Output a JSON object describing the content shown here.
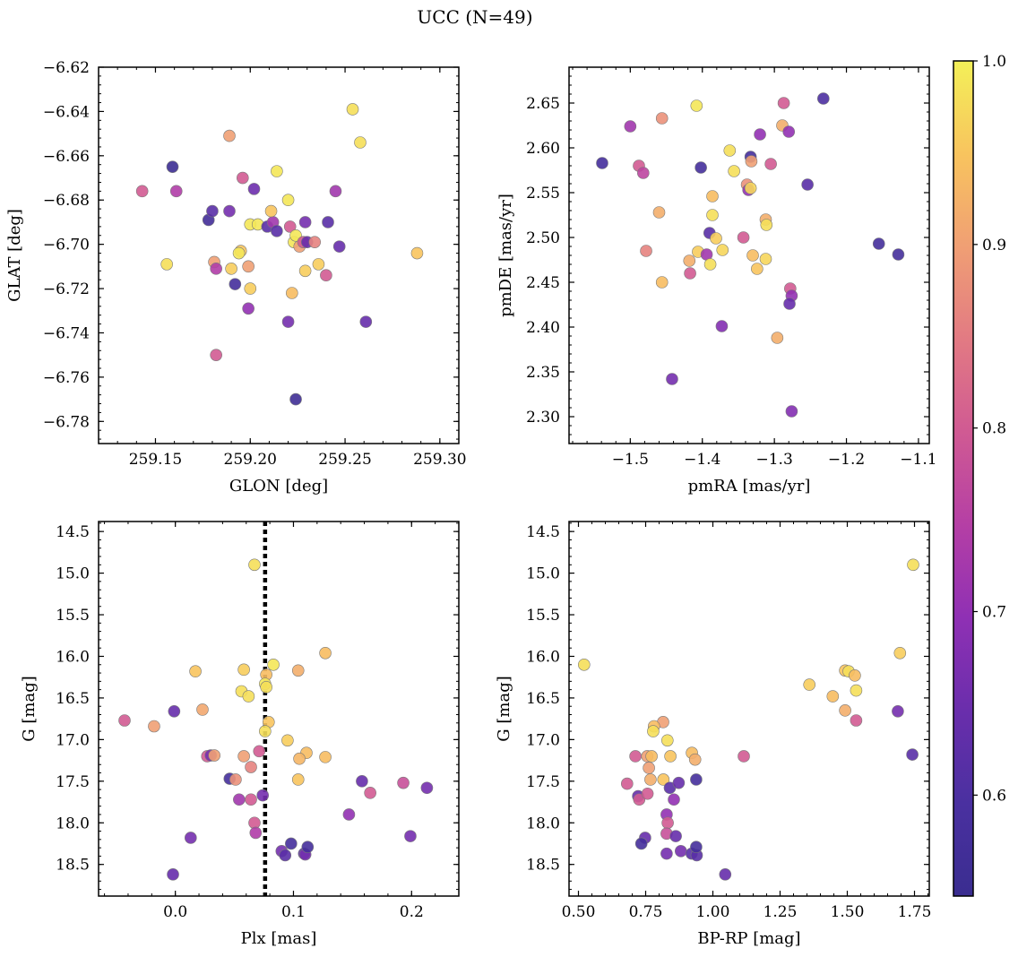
{
  "figure": {
    "title": "UCC (N=49)"
  },
  "colorbar": {
    "range": [
      0.545,
      1.0
    ],
    "ticks": [
      0.6,
      0.7,
      0.8,
      0.9,
      1.0
    ],
    "tick_labels": [
      "0.6",
      "0.7",
      "0.8",
      "0.9",
      "1.0"
    ],
    "colormap": "plasma"
  },
  "colormap_stops": [
    "#3a2d90",
    "#4a30a0",
    "#6a2eac",
    "#8f30b4",
    "#b53fa5",
    "#d05a93",
    "#e27a83",
    "#f09f74",
    "#f8c45e",
    "#f3f058"
  ],
  "chart_data": [
    {
      "type": "scatter",
      "title": "",
      "xlabel": "GLON [deg]",
      "ylabel": "GLAT [deg]",
      "xlim": [
        259.12,
        259.31
      ],
      "ylim": [
        -6.79,
        -6.62
      ],
      "xticks": [
        259.15,
        259.2,
        259.25,
        259.3
      ],
      "xtick_labels": [
        "259.15",
        "259.20",
        "259.25",
        "259.30"
      ],
      "yticks": [
        -6.78,
        -6.76,
        -6.74,
        -6.72,
        -6.7,
        -6.68,
        -6.66,
        -6.64,
        -6.62
      ],
      "ytick_labels": [
        "−6.78",
        "−6.76",
        "−6.74",
        "−6.72",
        "−6.70",
        "−6.68",
        "−6.66",
        "−6.64",
        "−6.62"
      ],
      "points": [
        [
          259.159,
          -6.665,
          0.55
        ],
        [
          259.143,
          -6.676,
          0.8
        ],
        [
          259.161,
          -6.676,
          0.74
        ],
        [
          259.178,
          -6.689,
          0.57
        ],
        [
          259.18,
          -6.685,
          0.62
        ],
        [
          259.189,
          -6.685,
          0.66
        ],
        [
          259.189,
          -6.651,
          0.9
        ],
        [
          259.196,
          -6.67,
          0.8
        ],
        [
          259.202,
          -6.675,
          0.65
        ],
        [
          259.214,
          -6.667,
          0.99
        ],
        [
          259.2,
          -6.691,
          0.99
        ],
        [
          259.204,
          -6.691,
          0.99
        ],
        [
          259.195,
          -6.703,
          0.95
        ],
        [
          259.194,
          -6.704,
          0.99
        ],
        [
          259.181,
          -6.708,
          0.9
        ],
        [
          259.182,
          -6.711,
          0.74
        ],
        [
          259.19,
          -6.711,
          0.96
        ],
        [
          259.199,
          -6.71,
          0.9
        ],
        [
          259.2,
          -6.72,
          0.96
        ],
        [
          259.192,
          -6.718,
          0.58
        ],
        [
          259.156,
          -6.709,
          0.98
        ],
        [
          259.199,
          -6.729,
          0.7
        ],
        [
          259.182,
          -6.75,
          0.8
        ],
        [
          259.209,
          -6.692,
          0.62
        ],
        [
          259.212,
          -6.69,
          0.72
        ],
        [
          259.214,
          -6.694,
          0.62
        ],
        [
          259.211,
          -6.685,
          0.95
        ],
        [
          259.22,
          -6.68,
          0.99
        ],
        [
          259.221,
          -6.692,
          0.8
        ],
        [
          259.223,
          -6.699,
          0.99
        ],
        [
          259.224,
          -6.696,
          0.99
        ],
        [
          259.226,
          -6.701,
          0.9
        ],
        [
          259.228,
          -6.699,
          0.8
        ],
        [
          259.229,
          -6.69,
          0.66
        ],
        [
          259.229,
          -6.712,
          0.96
        ],
        [
          259.23,
          -6.699,
          0.64
        ],
        [
          259.234,
          -6.699,
          0.86
        ],
        [
          259.236,
          -6.709,
          0.96
        ],
        [
          259.222,
          -6.722,
          0.94
        ],
        [
          259.22,
          -6.735,
          0.66
        ],
        [
          259.224,
          -6.77,
          0.56
        ],
        [
          259.241,
          -6.69,
          0.62
        ],
        [
          259.24,
          -6.714,
          0.8
        ],
        [
          259.245,
          -6.676,
          0.72
        ],
        [
          259.247,
          -6.701,
          0.64
        ],
        [
          259.254,
          -6.639,
          0.98
        ],
        [
          259.258,
          -6.654,
          0.98
        ],
        [
          259.261,
          -6.735,
          0.64
        ],
        [
          259.288,
          -6.704,
          0.95
        ]
      ]
    },
    {
      "type": "scatter",
      "title": "",
      "xlabel": "pmRA [mas/yr]",
      "ylabel": "pmDE [mas/yr]",
      "xlim": [
        -1.585,
        -1.085
      ],
      "ylim": [
        2.27,
        2.69
      ],
      "xticks": [
        -1.5,
        -1.4,
        -1.3,
        -1.2,
        -1.1
      ],
      "xtick_labels": [
        "−1.5",
        "−1.4",
        "−1.3",
        "−1.2",
        "−1.1"
      ],
      "yticks": [
        2.3,
        2.35,
        2.4,
        2.45,
        2.5,
        2.55,
        2.6,
        2.65
      ],
      "ytick_labels": [
        "2.30",
        "2.35",
        "2.40",
        "2.45",
        "2.50",
        "2.55",
        "2.60",
        "2.65"
      ],
      "points": [
        [
          -1.539,
          2.583,
          0.58
        ],
        [
          -1.5,
          2.624,
          0.72
        ],
        [
          -1.456,
          2.633,
          0.88
        ],
        [
          -1.488,
          2.58,
          0.8
        ],
        [
          -1.482,
          2.572,
          0.76
        ],
        [
          -1.408,
          2.647,
          0.99
        ],
        [
          -1.402,
          2.578,
          0.58
        ],
        [
          -1.362,
          2.597,
          0.98
        ],
        [
          -1.356,
          2.574,
          0.98
        ],
        [
          -1.32,
          2.615,
          0.7
        ],
        [
          -1.287,
          2.65,
          0.8
        ],
        [
          -1.289,
          2.625,
          0.92
        ],
        [
          -1.28,
          2.618,
          0.7
        ],
        [
          -1.232,
          2.655,
          0.6
        ],
        [
          -1.305,
          2.582,
          0.8
        ],
        [
          -1.254,
          2.559,
          0.62
        ],
        [
          -1.333,
          2.59,
          0.58
        ],
        [
          -1.332,
          2.585,
          0.9
        ],
        [
          -1.338,
          2.559,
          0.88
        ],
        [
          -1.336,
          2.553,
          0.7
        ],
        [
          -1.333,
          2.555,
          0.97
        ],
        [
          -1.386,
          2.546,
          0.94
        ],
        [
          -1.46,
          2.528,
          0.92
        ],
        [
          -1.386,
          2.525,
          0.98
        ],
        [
          -1.312,
          2.52,
          0.92
        ],
        [
          -1.311,
          2.514,
          0.98
        ],
        [
          -1.39,
          2.505,
          0.62
        ],
        [
          -1.381,
          2.499,
          0.96
        ],
        [
          -1.343,
          2.5,
          0.8
        ],
        [
          -1.478,
          2.485,
          0.86
        ],
        [
          -1.406,
          2.484,
          0.96
        ],
        [
          -1.394,
          2.481,
          0.72
        ],
        [
          -1.372,
          2.486,
          0.97
        ],
        [
          -1.33,
          2.48,
          0.94
        ],
        [
          -1.312,
          2.476,
          0.97
        ],
        [
          -1.418,
          2.474,
          0.92
        ],
        [
          -1.389,
          2.47,
          0.98
        ],
        [
          -1.324,
          2.465,
          0.95
        ],
        [
          -1.417,
          2.46,
          0.8
        ],
        [
          -1.456,
          2.45,
          0.94
        ],
        [
          -1.278,
          2.443,
          0.8
        ],
        [
          -1.276,
          2.435,
          0.7
        ],
        [
          -1.279,
          2.426,
          0.64
        ],
        [
          -1.373,
          2.401,
          0.68
        ],
        [
          -1.296,
          2.388,
          0.92
        ],
        [
          -1.442,
          2.342,
          0.66
        ],
        [
          -1.276,
          2.306,
          0.68
        ],
        [
          -1.155,
          2.493,
          0.58
        ],
        [
          -1.128,
          2.481,
          0.58
        ]
      ]
    },
    {
      "type": "scatter",
      "title": "",
      "xlabel": "Plx [mas]",
      "ylabel": "G [mag]",
      "xlim": [
        -0.065,
        0.24
      ],
      "ylim": [
        18.88,
        14.38
      ],
      "y_inverted": true,
      "xticks": [
        0.0,
        0.1,
        0.2
      ],
      "xtick_labels": [
        "0.0",
        "0.1",
        "0.2"
      ],
      "yticks": [
        14.5,
        15.0,
        15.5,
        16.0,
        16.5,
        17.0,
        17.5,
        18.0,
        18.5
      ],
      "ytick_labels": [
        "14.5",
        "15.0",
        "15.5",
        "16.0",
        "16.5",
        "17.0",
        "17.5",
        "18.0",
        "18.5"
      ],
      "vline": {
        "x": 0.076,
        "style": "dotted"
      },
      "points": [
        [
          0.067,
          14.9,
          0.98
        ],
        [
          0.017,
          16.18,
          0.95
        ],
        [
          0.058,
          16.16,
          0.96
        ],
        [
          0.077,
          16.22,
          0.94
        ],
        [
          0.083,
          16.1,
          0.99
        ],
        [
          0.104,
          16.17,
          0.92
        ],
        [
          0.127,
          15.96,
          0.94
        ],
        [
          0.056,
          16.42,
          0.98
        ],
        [
          0.062,
          16.48,
          0.98
        ],
        [
          0.076,
          16.33,
          0.99
        ],
        [
          0.077,
          16.37,
          0.98
        ],
        [
          0.023,
          16.64,
          0.91
        ],
        [
          -0.001,
          16.66,
          0.64
        ],
        [
          -0.043,
          16.77,
          0.8
        ],
        [
          -0.018,
          16.84,
          0.9
        ],
        [
          0.079,
          16.79,
          0.95
        ],
        [
          0.076,
          16.9,
          0.98
        ],
        [
          0.095,
          17.01,
          0.96
        ],
        [
          0.111,
          17.16,
          0.94
        ],
        [
          0.105,
          17.23,
          0.93
        ],
        [
          0.127,
          17.21,
          0.94
        ],
        [
          0.027,
          17.2,
          0.8
        ],
        [
          0.03,
          17.19,
          0.66
        ],
        [
          0.033,
          17.19,
          0.9
        ],
        [
          0.058,
          17.2,
          0.9
        ],
        [
          0.071,
          17.14,
          0.8
        ],
        [
          0.064,
          17.33,
          0.86
        ],
        [
          0.074,
          17.67,
          0.66
        ],
        [
          0.046,
          17.47,
          0.58
        ],
        [
          0.051,
          17.48,
          0.88
        ],
        [
          0.054,
          17.72,
          0.72
        ],
        [
          0.064,
          17.72,
          0.8
        ],
        [
          0.104,
          17.48,
          0.95
        ],
        [
          0.158,
          17.5,
          0.64
        ],
        [
          0.165,
          17.64,
          0.8
        ],
        [
          0.193,
          17.52,
          0.78
        ],
        [
          0.213,
          17.58,
          0.66
        ],
        [
          0.147,
          17.9,
          0.7
        ],
        [
          0.067,
          18.0,
          0.8
        ],
        [
          0.068,
          18.12,
          0.74
        ],
        [
          0.013,
          18.18,
          0.66
        ],
        [
          0.098,
          18.25,
          0.58
        ],
        [
          0.09,
          18.34,
          0.66
        ],
        [
          0.093,
          18.39,
          0.62
        ],
        [
          0.109,
          18.37,
          0.62
        ],
        [
          0.11,
          18.38,
          0.66
        ],
        [
          0.112,
          18.29,
          0.58
        ],
        [
          0.199,
          18.16,
          0.66
        ],
        [
          -0.002,
          18.62,
          0.64
        ]
      ]
    },
    {
      "type": "scatter",
      "title": "",
      "xlabel": "BP-RP [mag]",
      "ylabel": "G [mag]",
      "xlim": [
        0.465,
        1.805
      ],
      "ylim": [
        18.88,
        14.38
      ],
      "y_inverted": true,
      "xticks": [
        0.5,
        0.75,
        1.0,
        1.25,
        1.5,
        1.75
      ],
      "xtick_labels": [
        "0.50",
        "0.75",
        "1.00",
        "1.25",
        "1.50",
        "1.75"
      ],
      "yticks": [
        14.5,
        15.0,
        15.5,
        16.0,
        16.5,
        17.0,
        17.5,
        18.0,
        18.5
      ],
      "ytick_labels": [
        "14.5",
        "15.0",
        "15.5",
        "16.0",
        "16.5",
        "17.0",
        "17.5",
        "18.0",
        "18.5"
      ],
      "points": [
        [
          1.745,
          14.9,
          0.98
        ],
        [
          0.521,
          16.1,
          0.98
        ],
        [
          1.696,
          15.96,
          0.96
        ],
        [
          1.492,
          16.17,
          0.95
        ],
        [
          1.505,
          16.18,
          0.98
        ],
        [
          1.528,
          16.23,
          0.94
        ],
        [
          1.359,
          16.34,
          0.96
        ],
        [
          1.446,
          16.48,
          0.94
        ],
        [
          1.533,
          16.41,
          0.98
        ],
        [
          1.492,
          16.65,
          0.92
        ],
        [
          1.533,
          16.77,
          0.8
        ],
        [
          1.688,
          16.66,
          0.66
        ],
        [
          1.742,
          17.18,
          0.62
        ],
        [
          1.115,
          17.2,
          0.8
        ],
        [
          0.815,
          16.79,
          0.9
        ],
        [
          0.781,
          16.84,
          0.94
        ],
        [
          0.778,
          16.9,
          0.98
        ],
        [
          0.831,
          17.01,
          0.98
        ],
        [
          0.922,
          17.16,
          0.94
        ],
        [
          0.934,
          17.24,
          0.92
        ],
        [
          0.712,
          17.2,
          0.8
        ],
        [
          0.756,
          17.2,
          0.9
        ],
        [
          0.772,
          17.2,
          0.94
        ],
        [
          0.842,
          17.2,
          0.95
        ],
        [
          0.762,
          17.34,
          0.9
        ],
        [
          0.681,
          17.53,
          0.8
        ],
        [
          0.768,
          17.48,
          0.92
        ],
        [
          0.816,
          17.48,
          0.95
        ],
        [
          0.84,
          17.58,
          0.62
        ],
        [
          0.873,
          17.52,
          0.64
        ],
        [
          0.938,
          17.48,
          0.58
        ],
        [
          0.722,
          17.68,
          0.64
        ],
        [
          0.726,
          17.72,
          0.8
        ],
        [
          0.757,
          17.65,
          0.8
        ],
        [
          0.855,
          17.72,
          0.7
        ],
        [
          0.828,
          17.9,
          0.7
        ],
        [
          0.832,
          18.0,
          0.8
        ],
        [
          0.828,
          18.13,
          0.78
        ],
        [
          0.862,
          18.16,
          0.64
        ],
        [
          0.748,
          18.18,
          0.64
        ],
        [
          0.734,
          18.25,
          0.58
        ],
        [
          0.828,
          18.37,
          0.66
        ],
        [
          0.881,
          18.34,
          0.66
        ],
        [
          0.921,
          18.37,
          0.62
        ],
        [
          0.94,
          18.39,
          0.62
        ],
        [
          0.938,
          18.29,
          0.58
        ],
        [
          1.046,
          18.62,
          0.64
        ]
      ]
    }
  ]
}
